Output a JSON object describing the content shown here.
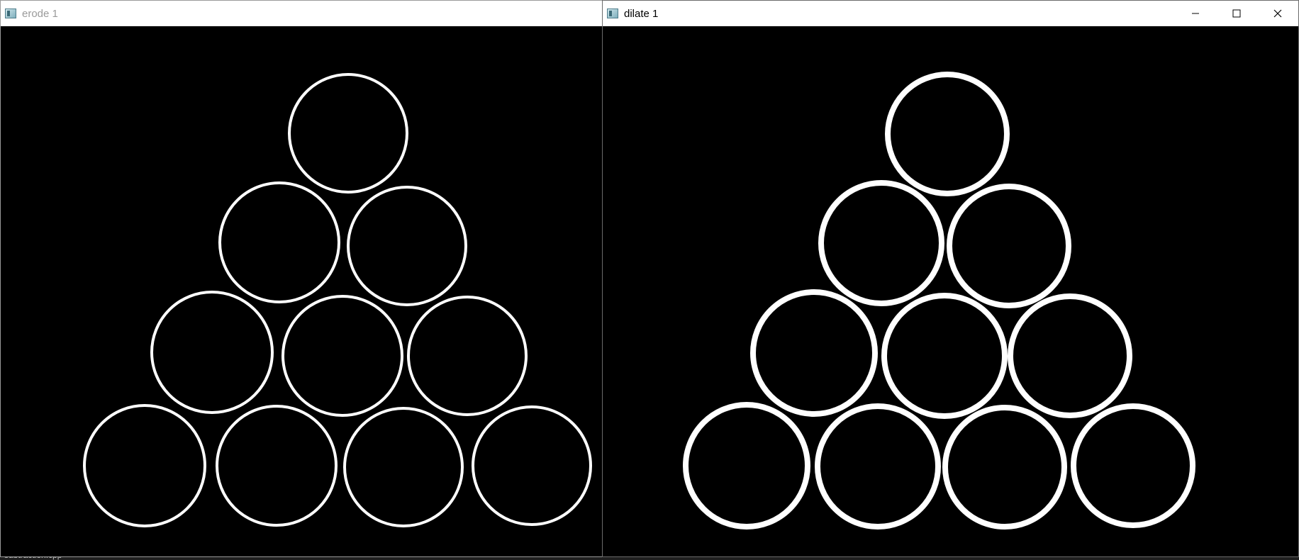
{
  "taskbar": {
    "file_label": "subtraction.cpp"
  },
  "windows": [
    {
      "title": "erode 1",
      "state": "inactive",
      "image": {
        "icon": "opencv-window-icon",
        "ring_style": "thin"
      }
    },
    {
      "title": "dilate 1",
      "state": "active",
      "controls": {
        "minimize": "minimize-icon",
        "maximize": "maximize-icon",
        "close": "close-icon"
      },
      "image": {
        "icon": "opencv-window-icon",
        "ring_style": "thick"
      }
    }
  ],
  "colors": {
    "background": "#000000",
    "rings": "#ffffff"
  }
}
